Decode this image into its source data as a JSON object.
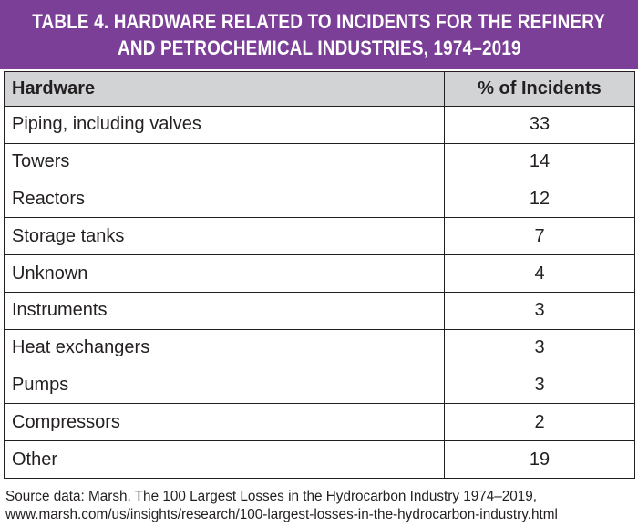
{
  "title": {
    "line1": "TABLE 4.  HARDWARE RELATED TO INCIDENTS FOR THE REFINERY",
    "line2": "AND PETROCHEMICAL INDUSTRIES, 1974–2019"
  },
  "table": {
    "headers": [
      "Hardware",
      "% of Incidents"
    ],
    "rows": [
      {
        "hardware": "Piping, including valves",
        "pct": "33"
      },
      {
        "hardware": "Towers",
        "pct": "14"
      },
      {
        "hardware": "Reactors",
        "pct": "12"
      },
      {
        "hardware": "Storage tanks",
        "pct": "7"
      },
      {
        "hardware": "Unknown",
        "pct": "4"
      },
      {
        "hardware": "Instruments",
        "pct": "3"
      },
      {
        "hardware": "Heat exchangers",
        "pct": "3"
      },
      {
        "hardware": "Pumps",
        "pct": "3"
      },
      {
        "hardware": "Compressors",
        "pct": "2"
      },
      {
        "hardware": "Other",
        "pct": "19"
      }
    ]
  },
  "source": {
    "line1": "Source data: Marsh, The 100 Largest Losses in the Hydrocarbon Industry 1974–2019,",
    "line2": "www.marsh.com/us/insights/research/100-largest-losses-in-the-hydrocarbon-industry.html"
  },
  "colors": {
    "title_background": "#7b3f98",
    "header_background": "#d1d3d4"
  }
}
